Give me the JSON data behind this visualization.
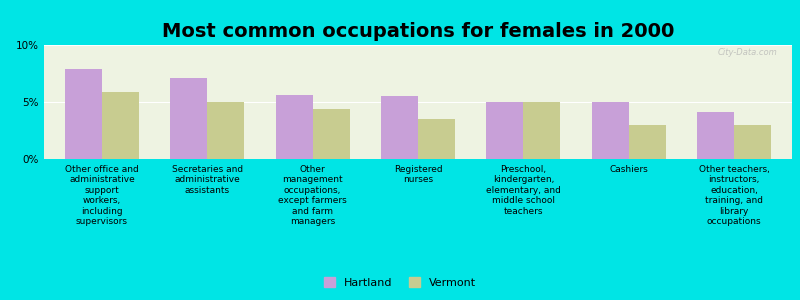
{
  "title": "Most common occupations for females in 2000",
  "categories": [
    "Other office and\nadministrative\nsupport\nworkers,\nincluding\nsupervisors",
    "Secretaries and\nadministrative\nassistants",
    "Other\nmanagement\noccupations,\nexcept farmers\nand farm\nmanagers",
    "Registered\nnurses",
    "Preschool,\nkindergarten,\nelementary, and\nmiddle school\nteachers",
    "Cashiers",
    "Other teachers,\ninstructors,\neducation,\ntraining, and\nlibrary\noccupations"
  ],
  "hartland_values": [
    7.9,
    7.1,
    5.6,
    5.5,
    5.0,
    5.0,
    4.1
  ],
  "vermont_values": [
    5.9,
    5.0,
    4.4,
    3.5,
    5.0,
    3.0,
    3.0
  ],
  "hartland_color": "#c8a0d8",
  "vermont_color": "#c8cc90",
  "background_color": "#00e5e5",
  "plot_bg_color": "#eef3e2",
  "ylim": [
    0,
    10
  ],
  "yticks": [
    0,
    5,
    10
  ],
  "ytick_labels": [
    "0%",
    "5%",
    "10%"
  ],
  "bar_width": 0.35,
  "legend_labels": [
    "Hartland",
    "Vermont"
  ],
  "watermark": "City-Data.com",
  "title_fontsize": 14,
  "label_fontsize": 6.5,
  "ytick_fontsize": 7.5
}
